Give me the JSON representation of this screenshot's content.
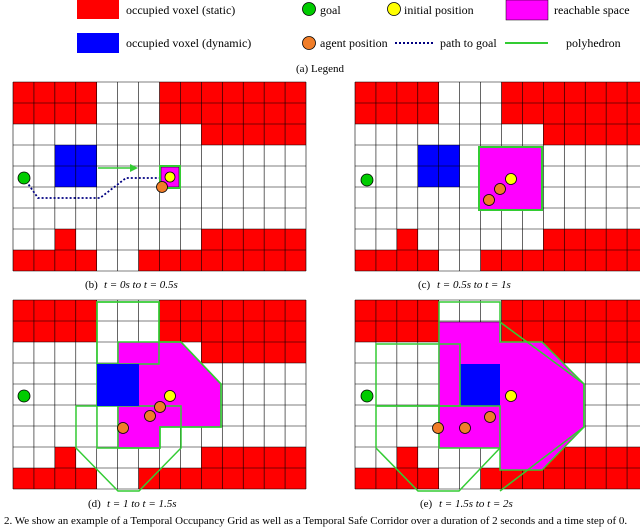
{
  "legend": {
    "items": [
      {
        "label": "occupied voxel (static)",
        "symbol": "red-square",
        "color": "#ff0000"
      },
      {
        "label": "goal",
        "symbol": "green-circle",
        "color": "#00cc00"
      },
      {
        "label": "initial position",
        "symbol": "yellow-circle",
        "color": "#ffff00"
      },
      {
        "label": "reachable space",
        "symbol": "magenta-square",
        "color": "#ff00ff"
      },
      {
        "label": "occupied voxel (dynamic)",
        "symbol": "blue-square",
        "color": "#0000ff"
      },
      {
        "label": "agent position",
        "symbol": "orange-circle",
        "color": "#f07d28"
      },
      {
        "label": "path to goal",
        "symbol": "dotted-blue-line",
        "color": "#000080"
      },
      {
        "label": "polyhedron",
        "symbol": "green-line",
        "color": "#33cc33"
      }
    ],
    "caption": "(a) Legend"
  },
  "panels": [
    {
      "id": "b",
      "caption_prefix": "(b)",
      "caption_math": "t = 0s to t = 0.5s"
    },
    {
      "id": "c",
      "caption_prefix": "(c)",
      "caption_math": "t = 0.5s to t = 1s"
    },
    {
      "id": "d",
      "caption_prefix": "(d)",
      "caption_math": "t = 1 to t = 1.5s"
    },
    {
      "id": "e",
      "caption_prefix": "(e)",
      "caption_math": "t = 1.5s to t = 2s"
    }
  ],
  "figure_caption": "2.   We show an example of a Temporal Occupancy Grid as well as a Temporal Safe Corridor over a duration of 2 seconds and a time step of 0."
}
